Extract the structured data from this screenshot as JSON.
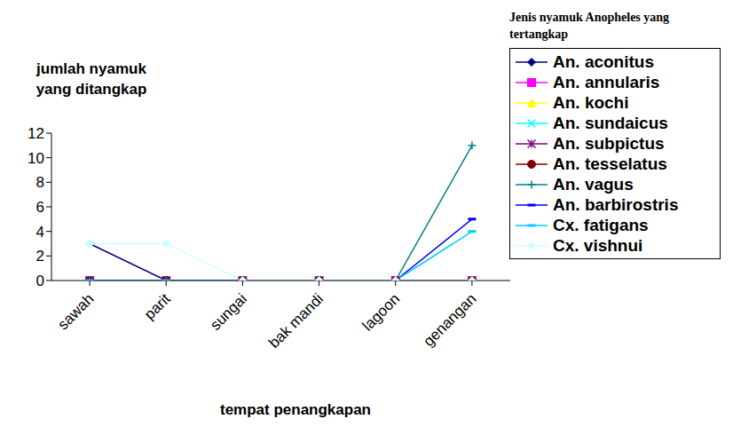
{
  "chart_data": {
    "type": "line",
    "y_label": "jumlah nyamuk yang ditangkap",
    "x_label": "tempat penangkapan",
    "legend_title": "Jenis nyamuk Anopheles yang tertangkap",
    "categories": [
      "sawah",
      "parit",
      "sungai",
      "bak mandi",
      "lagoon",
      "genangan"
    ],
    "ylim": [
      0,
      12
    ],
    "yticks": [
      0,
      2,
      4,
      6,
      8,
      10,
      12
    ],
    "grid": false,
    "series": [
      {
        "name": "An. aconitus",
        "color": "#000080",
        "marker": "diamond",
        "values": [
          3,
          0,
          0,
          0,
          0,
          0
        ]
      },
      {
        "name": "An. annularis",
        "color": "#FF00FF",
        "marker": "square",
        "values": [
          0,
          0,
          0,
          0,
          0,
          0
        ]
      },
      {
        "name": "An. kochi",
        "color": "#FFFF00",
        "marker": "triangle",
        "values": [
          0,
          0,
          0,
          0,
          0,
          0
        ]
      },
      {
        "name": "An. sundaicus",
        "color": "#00FFFF",
        "marker": "x",
        "values": [
          0,
          0,
          0,
          0,
          0,
          0
        ]
      },
      {
        "name": "An. subpictus",
        "color": "#800080",
        "marker": "star",
        "values": [
          0,
          0,
          0,
          0,
          0,
          0
        ]
      },
      {
        "name": "An. tesselatus",
        "color": "#800000",
        "marker": "circle",
        "values": [
          0,
          0,
          0,
          0,
          0,
          0
        ]
      },
      {
        "name": "An. vagus",
        "color": "#008080",
        "marker": "plus",
        "values": [
          0,
          0,
          0,
          0,
          0,
          11
        ]
      },
      {
        "name": "An. barbirostris",
        "color": "#0000FF",
        "marker": "dash",
        "values": [
          0,
          0,
          0,
          0,
          0,
          5
        ]
      },
      {
        "name": "Cx. fatigans",
        "color": "#00CCFF",
        "marker": "dash",
        "values": [
          0,
          0,
          0,
          0,
          0,
          4
        ]
      },
      {
        "name": "Cx. vishnui",
        "color": "#CCFFFF",
        "marker": "diamond",
        "values": [
          3,
          3,
          0,
          0,
          0,
          0
        ]
      }
    ]
  }
}
